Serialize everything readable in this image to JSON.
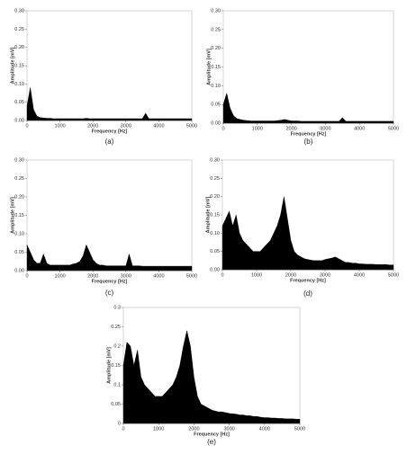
{
  "chart_data": [
    {
      "type": "area",
      "label": "(a)",
      "xlabel": "Frequency [Hz]",
      "ylabel": "Amplitude [mV]",
      "color": "#000000",
      "xlim": [
        0,
        5000
      ],
      "xticks": [
        0,
        1000,
        2000,
        3000,
        4000,
        5000
      ],
      "ylim": [
        0,
        0.3
      ],
      "yticks": [
        {
          "value": 0,
          "label": "0.00"
        },
        {
          "value": 0.05,
          "label": "0.05"
        },
        {
          "value": 0.1,
          "label": "0.10"
        },
        {
          "value": 0.15,
          "label": "0.15"
        },
        {
          "value": 0.2,
          "label": "0.20"
        },
        {
          "value": 0.25,
          "label": "0.25"
        },
        {
          "value": 0.3,
          "label": "0.30"
        }
      ],
      "x": [
        0,
        100,
        200,
        300,
        400,
        500,
        600,
        700,
        800,
        900,
        1000,
        1100,
        1200,
        1300,
        1400,
        1500,
        1600,
        1700,
        1800,
        1900,
        2000,
        2100,
        2200,
        2300,
        2400,
        2500,
        2600,
        2700,
        2800,
        2900,
        3000,
        3100,
        3200,
        3300,
        3400,
        3500,
        3600,
        3700,
        3800,
        3900,
        4000,
        4100,
        4200,
        4300,
        4400,
        4500,
        4600,
        4700,
        4800,
        4900,
        5000
      ],
      "values": [
        0.04,
        0.09,
        0.03,
        0.012,
        0.008,
        0.007,
        0.006,
        0.006,
        0.005,
        0.005,
        0.005,
        0.005,
        0.005,
        0.005,
        0.005,
        0.005,
        0.005,
        0.005,
        0.006,
        0.005,
        0.005,
        0.005,
        0.005,
        0.005,
        0.005,
        0.005,
        0.005,
        0.005,
        0.005,
        0.005,
        0.005,
        0.005,
        0.005,
        0.005,
        0.005,
        0.005,
        0.02,
        0.005,
        0.005,
        0.005,
        0.005,
        0.005,
        0.005,
        0.005,
        0.005,
        0.005,
        0.005,
        0.005,
        0.005,
        0.005,
        0.005
      ]
    },
    {
      "type": "area",
      "label": "(b)",
      "xlabel": "Frequency [Hz]",
      "ylabel": "Amplitude [mV]",
      "color": "#000000",
      "xlim": [
        0,
        5000
      ],
      "xticks": [
        0,
        1000,
        2000,
        3000,
        4000,
        5000
      ],
      "ylim": [
        0,
        0.3
      ],
      "yticks": [
        {
          "value": 0,
          "label": "0.00"
        },
        {
          "value": 0.05,
          "label": "0.05"
        },
        {
          "value": 0.1,
          "label": "0.10"
        },
        {
          "value": 0.15,
          "label": "0.15"
        },
        {
          "value": 0.2,
          "label": "0.20"
        },
        {
          "value": 0.25,
          "label": "0.25"
        },
        {
          "value": 0.3,
          "label": "0.30"
        }
      ],
      "x": [
        0,
        100,
        200,
        300,
        400,
        500,
        600,
        700,
        800,
        900,
        1000,
        1100,
        1200,
        1300,
        1400,
        1500,
        1600,
        1700,
        1800,
        1900,
        2000,
        2100,
        2200,
        2300,
        2400,
        2500,
        2600,
        2700,
        2800,
        2900,
        3000,
        3100,
        3200,
        3300,
        3400,
        3500,
        3600,
        3700,
        3800,
        3900,
        4000,
        4100,
        4200,
        4300,
        4400,
        4500,
        4600,
        4700,
        4800,
        4900,
        5000
      ],
      "values": [
        0.05,
        0.08,
        0.04,
        0.02,
        0.012,
        0.01,
        0.008,
        0.007,
        0.006,
        0.006,
        0.006,
        0.006,
        0.006,
        0.006,
        0.006,
        0.006,
        0.007,
        0.008,
        0.01,
        0.008,
        0.006,
        0.006,
        0.006,
        0.005,
        0.005,
        0.005,
        0.005,
        0.005,
        0.005,
        0.005,
        0.005,
        0.005,
        0.005,
        0.005,
        0.005,
        0.015,
        0.005,
        0.005,
        0.005,
        0.005,
        0.005,
        0.005,
        0.005,
        0.005,
        0.005,
        0.005,
        0.005,
        0.005,
        0.005,
        0.005,
        0.005
      ]
    },
    {
      "type": "area",
      "label": "(c)",
      "xlabel": "Frequency [Hz]",
      "ylabel": "Amplitude [mV]",
      "color": "#000000",
      "xlim": [
        0,
        5000
      ],
      "xticks": [
        0,
        1000,
        2000,
        3000,
        4000,
        5000
      ],
      "ylim": [
        0,
        0.3
      ],
      "yticks": [
        {
          "value": 0,
          "label": "0.00"
        },
        {
          "value": 0.05,
          "label": "0.05"
        },
        {
          "value": 0.1,
          "label": "0.10"
        },
        {
          "value": 0.15,
          "label": "0.15"
        },
        {
          "value": 0.2,
          "label": "0.20"
        },
        {
          "value": 0.25,
          "label": "0.25"
        },
        {
          "value": 0.3,
          "label": "0.30"
        }
      ],
      "x": [
        0,
        100,
        200,
        300,
        400,
        500,
        600,
        700,
        800,
        900,
        1000,
        1100,
        1200,
        1300,
        1400,
        1500,
        1600,
        1700,
        1800,
        1900,
        2000,
        2100,
        2200,
        2300,
        2400,
        2500,
        2600,
        2700,
        2800,
        2900,
        3000,
        3100,
        3200,
        3300,
        3400,
        3500,
        3600,
        3700,
        3800,
        3900,
        4000,
        4100,
        4200,
        4300,
        4400,
        4500,
        4600,
        4700,
        4800,
        4900,
        5000
      ],
      "values": [
        0.07,
        0.05,
        0.03,
        0.02,
        0.02,
        0.045,
        0.02,
        0.015,
        0.015,
        0.015,
        0.015,
        0.015,
        0.015,
        0.015,
        0.018,
        0.02,
        0.025,
        0.04,
        0.07,
        0.05,
        0.03,
        0.02,
        0.015,
        0.015,
        0.013,
        0.013,
        0.013,
        0.013,
        0.013,
        0.013,
        0.013,
        0.045,
        0.013,
        0.013,
        0.013,
        0.012,
        0.012,
        0.012,
        0.012,
        0.012,
        0.012,
        0.012,
        0.012,
        0.012,
        0.012,
        0.012,
        0.012,
        0.012,
        0.012,
        0.012,
        0.012
      ]
    },
    {
      "type": "area",
      "label": "(d)",
      "xlabel": "Frequency [Hz]",
      "ylabel": "Amplitude [mV]",
      "color": "#000000",
      "xlim": [
        0,
        5000
      ],
      "xticks": [
        0,
        1000,
        2000,
        3000,
        4000,
        5000
      ],
      "ylim": [
        0,
        0.3
      ],
      "yticks": [
        {
          "value": 0,
          "label": "0.00"
        },
        {
          "value": 0.05,
          "label": "0.05"
        },
        {
          "value": 0.1,
          "label": "0.10"
        },
        {
          "value": 0.15,
          "label": "0.15"
        },
        {
          "value": 0.2,
          "label": "0.20"
        },
        {
          "value": 0.25,
          "label": "0.25"
        },
        {
          "value": 0.3,
          "label": "0.30"
        }
      ],
      "x": [
        0,
        100,
        200,
        300,
        400,
        500,
        600,
        700,
        800,
        900,
        1000,
        1100,
        1200,
        1300,
        1400,
        1500,
        1600,
        1700,
        1800,
        1900,
        2000,
        2100,
        2200,
        2300,
        2400,
        2500,
        2600,
        2700,
        2800,
        2900,
        3000,
        3100,
        3200,
        3300,
        3400,
        3500,
        3600,
        3700,
        3800,
        3900,
        4000,
        4100,
        4200,
        4300,
        4400,
        4500,
        4600,
        4700,
        4800,
        4900,
        5000
      ],
      "values": [
        0.12,
        0.14,
        0.16,
        0.12,
        0.15,
        0.1,
        0.08,
        0.07,
        0.06,
        0.05,
        0.05,
        0.05,
        0.06,
        0.07,
        0.08,
        0.1,
        0.12,
        0.15,
        0.2,
        0.14,
        0.08,
        0.05,
        0.04,
        0.035,
        0.03,
        0.028,
        0.026,
        0.025,
        0.025,
        0.025,
        0.028,
        0.03,
        0.032,
        0.035,
        0.03,
        0.025,
        0.02,
        0.02,
        0.018,
        0.018,
        0.016,
        0.016,
        0.015,
        0.015,
        0.015,
        0.014,
        0.014,
        0.014,
        0.014,
        0.013,
        0.013
      ]
    },
    {
      "type": "area",
      "label": "(e)",
      "xlabel": "Frequency [Hz]",
      "ylabel": "Amplitude [mV]",
      "color": "#000000",
      "xlim": [
        0,
        5000
      ],
      "xticks": [
        0,
        1000,
        2000,
        3000,
        4000,
        5000
      ],
      "ylim": [
        0,
        0.3
      ],
      "yticks": [
        0,
        0.05,
        0.1,
        0.15,
        0.2,
        0.25,
        0.3
      ],
      "x": [
        0,
        100,
        200,
        300,
        400,
        500,
        600,
        700,
        800,
        900,
        1000,
        1100,
        1200,
        1300,
        1400,
        1500,
        1600,
        1700,
        1800,
        1900,
        2000,
        2100,
        2200,
        2300,
        2400,
        2500,
        2600,
        2700,
        2800,
        2900,
        3000,
        3100,
        3200,
        3300,
        3400,
        3500,
        3600,
        3700,
        3800,
        3900,
        4000,
        4100,
        4200,
        4300,
        4400,
        4500,
        4600,
        4700,
        4800,
        4900,
        5000
      ],
      "values": [
        0.15,
        0.21,
        0.2,
        0.15,
        0.19,
        0.12,
        0.1,
        0.09,
        0.08,
        0.07,
        0.07,
        0.07,
        0.08,
        0.09,
        0.1,
        0.12,
        0.15,
        0.2,
        0.24,
        0.2,
        0.12,
        0.07,
        0.05,
        0.045,
        0.04,
        0.035,
        0.032,
        0.03,
        0.03,
        0.028,
        0.026,
        0.025,
        0.024,
        0.022,
        0.022,
        0.02,
        0.02,
        0.018,
        0.018,
        0.016,
        0.015,
        0.015,
        0.014,
        0.014,
        0.013,
        0.013,
        0.012,
        0.012,
        0.012,
        0.011,
        0.011
      ]
    }
  ]
}
